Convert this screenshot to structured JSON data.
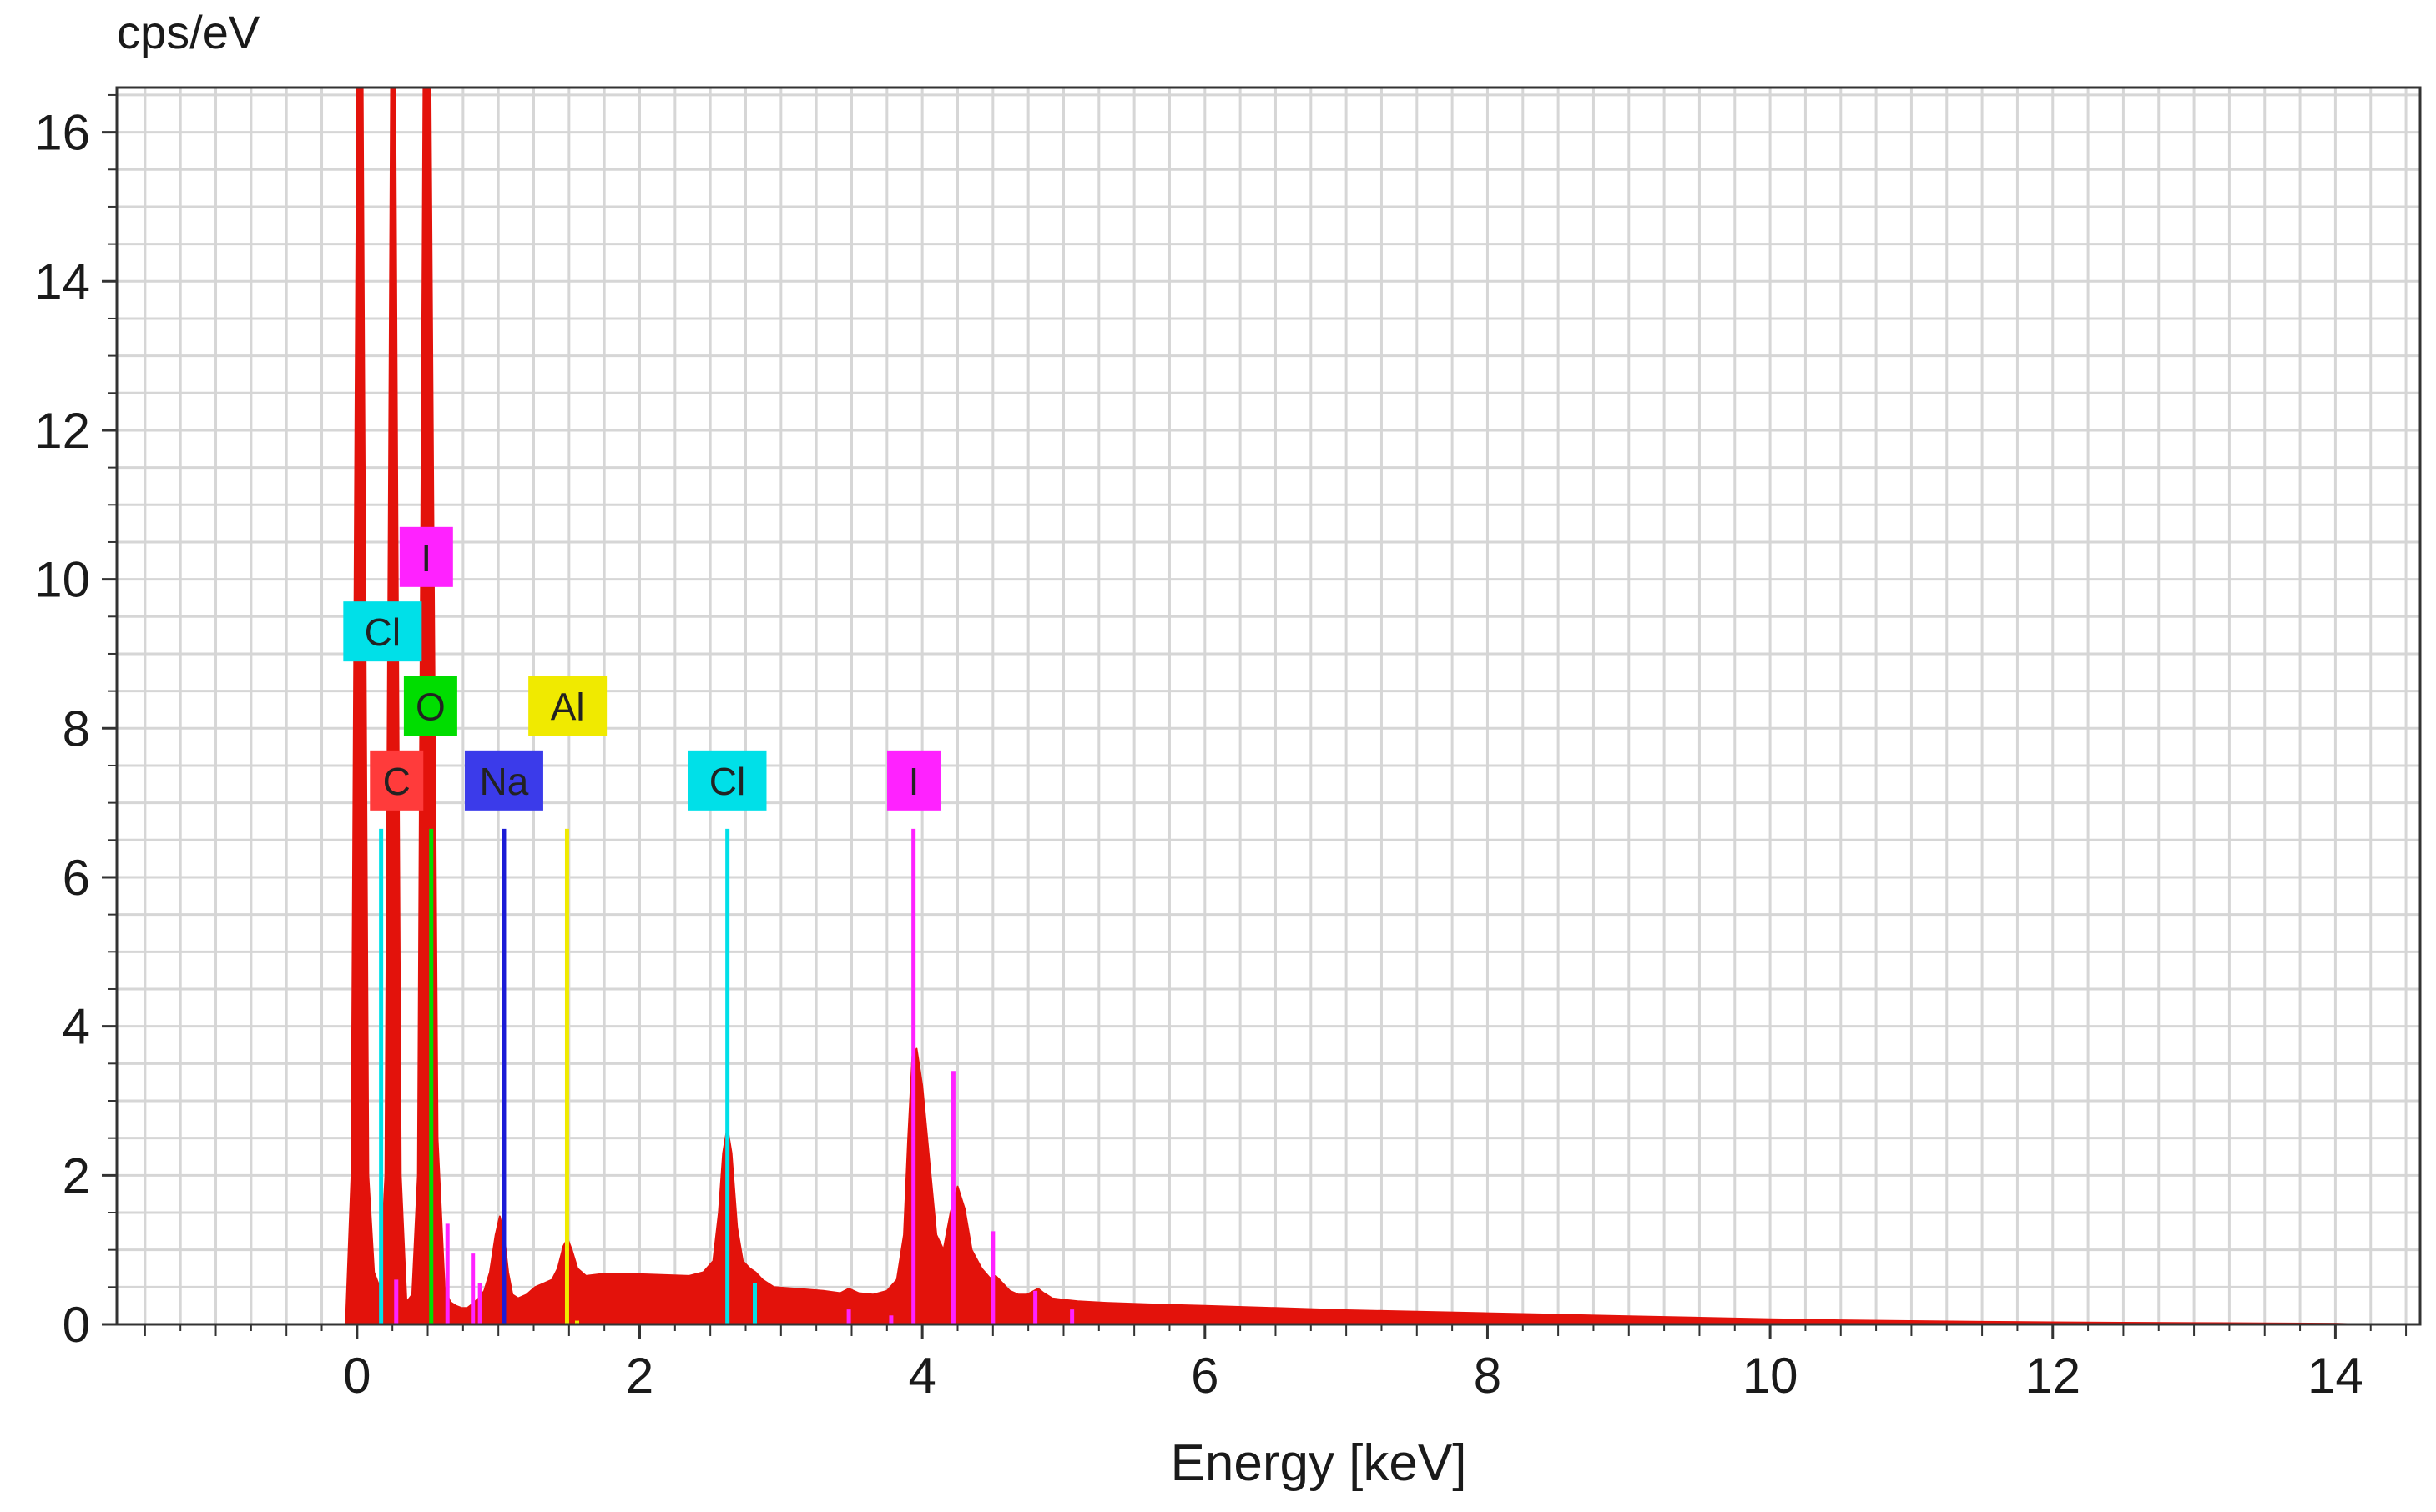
{
  "chart_data": {
    "type": "area",
    "ylabel": "cps/eV",
    "xlabel": "Energy [keV]",
    "xlim": [
      -1.7,
      14.6
    ],
    "ylim": [
      0,
      16.6
    ],
    "grid": true,
    "x_ticks": [
      0,
      2,
      4,
      6,
      8,
      10,
      12,
      14
    ],
    "x_tick_labels": [
      "0",
      "2",
      "4",
      "6",
      "8",
      "10",
      "12",
      "14"
    ],
    "y_ticks": [
      0,
      2,
      4,
      6,
      8,
      10,
      12,
      14,
      16
    ],
    "y_tick_labels": [
      "0",
      "2",
      "4",
      "6",
      "8",
      "10",
      "12",
      "14",
      "16"
    ],
    "spectrum": {
      "color": "#e3120b",
      "x": [
        -0.08,
        -0.04,
        0.0,
        0.04,
        0.08,
        0.12,
        0.16,
        0.2,
        0.24,
        0.27,
        0.31,
        0.35,
        0.39,
        0.43,
        0.47,
        0.52,
        0.57,
        0.62,
        0.66,
        0.7,
        0.74,
        0.78,
        0.82,
        0.86,
        0.9,
        0.94,
        0.98,
        1.01,
        1.04,
        1.07,
        1.1,
        1.14,
        1.2,
        1.26,
        1.32,
        1.38,
        1.42,
        1.46,
        1.49,
        1.52,
        1.56,
        1.62,
        1.75,
        1.9,
        2.05,
        2.2,
        2.35,
        2.45,
        2.52,
        2.56,
        2.59,
        2.62,
        2.65,
        2.69,
        2.73,
        2.78,
        2.82,
        2.87,
        2.95,
        3.1,
        3.3,
        3.42,
        3.48,
        3.55,
        3.65,
        3.75,
        3.82,
        3.87,
        3.9,
        3.93,
        3.96,
        4.0,
        4.05,
        4.1,
        4.15,
        4.2,
        4.25,
        4.3,
        4.35,
        4.42,
        4.48,
        4.52,
        4.57,
        4.62,
        4.68,
        4.74,
        4.78,
        4.82,
        4.86,
        4.92,
        5.0,
        5.1,
        5.3,
        5.6,
        6.0,
        6.5,
        7.0,
        7.5,
        8.0,
        8.5,
        9.0,
        9.5,
        10.0,
        10.5,
        11.0,
        11.5,
        12.0,
        12.5,
        13.0,
        13.5,
        14.0,
        14.2
      ],
      "y": [
        0,
        2,
        16.6,
        16.6,
        2,
        0.7,
        0.5,
        2,
        16.6,
        16.6,
        2,
        0.3,
        0.4,
        2,
        16.6,
        16.6,
        2.5,
        0.5,
        0.3,
        0.25,
        0.22,
        0.22,
        0.28,
        0.35,
        0.45,
        0.7,
        1.2,
        1.45,
        1.2,
        0.7,
        0.4,
        0.35,
        0.4,
        0.5,
        0.55,
        0.6,
        0.75,
        1.05,
        1.15,
        1.0,
        0.75,
        0.65,
        0.68,
        0.68,
        0.67,
        0.66,
        0.65,
        0.7,
        0.85,
        1.5,
        2.3,
        2.65,
        2.3,
        1.3,
        0.85,
        0.75,
        0.7,
        0.6,
        0.5,
        0.48,
        0.45,
        0.42,
        0.48,
        0.42,
        0.4,
        0.45,
        0.6,
        1.2,
        2.5,
        3.6,
        3.7,
        3.2,
        2.2,
        1.2,
        1.0,
        1.5,
        1.85,
        1.55,
        1.0,
        0.75,
        0.62,
        0.65,
        0.55,
        0.45,
        0.4,
        0.4,
        0.44,
        0.48,
        0.42,
        0.35,
        0.33,
        0.31,
        0.29,
        0.27,
        0.25,
        0.22,
        0.19,
        0.17,
        0.15,
        0.13,
        0.11,
        0.09,
        0.07,
        0.055,
        0.045,
        0.035,
        0.028,
        0.022,
        0.018,
        0.014,
        0.01,
        0
      ]
    },
    "marker_lines": [
      {
        "x": 0.17,
        "y": 6.65,
        "color": "#00e0e8"
      },
      {
        "x": 0.277,
        "y": 0.6,
        "color": "#ff22ff"
      },
      {
        "x": 0.525,
        "y": 6.65,
        "color": "#00dd00"
      },
      {
        "x": 0.64,
        "y": 1.35,
        "color": "#ff22ff"
      },
      {
        "x": 0.82,
        "y": 0.95,
        "color": "#ff22ff"
      },
      {
        "x": 0.87,
        "y": 0.55,
        "color": "#ff22ff"
      },
      {
        "x": 1.04,
        "y": 6.65,
        "color": "#1b1bd6"
      },
      {
        "x": 1.486,
        "y": 6.65,
        "color": "#f0ea00"
      },
      {
        "x": 1.557,
        "y": 0.05,
        "color": "#f0ea00"
      },
      {
        "x": 2.621,
        "y": 6.65,
        "color": "#00e0e8"
      },
      {
        "x": 2.815,
        "y": 0.55,
        "color": "#00e0e8"
      },
      {
        "x": 3.48,
        "y": 0.2,
        "color": "#ff22ff"
      },
      {
        "x": 3.78,
        "y": 0.12,
        "color": "#ff22ff"
      },
      {
        "x": 3.938,
        "y": 6.65,
        "color": "#ff22ff"
      },
      {
        "x": 4.22,
        "y": 3.4,
        "color": "#ff22ff"
      },
      {
        "x": 4.5,
        "y": 1.25,
        "color": "#ff22ff"
      },
      {
        "x": 4.8,
        "y": 0.45,
        "color": "#ff22ff"
      },
      {
        "x": 5.06,
        "y": 0.2,
        "color": "#ff22ff"
      }
    ],
    "element_labels": [
      {
        "text": "I",
        "x": 0.49,
        "y": 10.3,
        "color": "#ff22ff"
      },
      {
        "text": "Cl",
        "x": 0.18,
        "y": 9.3,
        "color": "#00e0e8"
      },
      {
        "text": "O",
        "x": 0.52,
        "y": 8.3,
        "color": "#00dd00"
      },
      {
        "text": "Al",
        "x": 1.49,
        "y": 8.3,
        "color": "#f0ea00"
      },
      {
        "text": "C",
        "x": 0.28,
        "y": 7.3,
        "color": "#ff3b3b"
      },
      {
        "text": "Na",
        "x": 1.04,
        "y": 7.3,
        "color": "#3b3bea"
      },
      {
        "text": "Cl",
        "x": 2.62,
        "y": 7.3,
        "color": "#00e0e8"
      },
      {
        "text": "I",
        "x": 3.94,
        "y": 7.3,
        "color": "#ff22ff"
      }
    ]
  }
}
